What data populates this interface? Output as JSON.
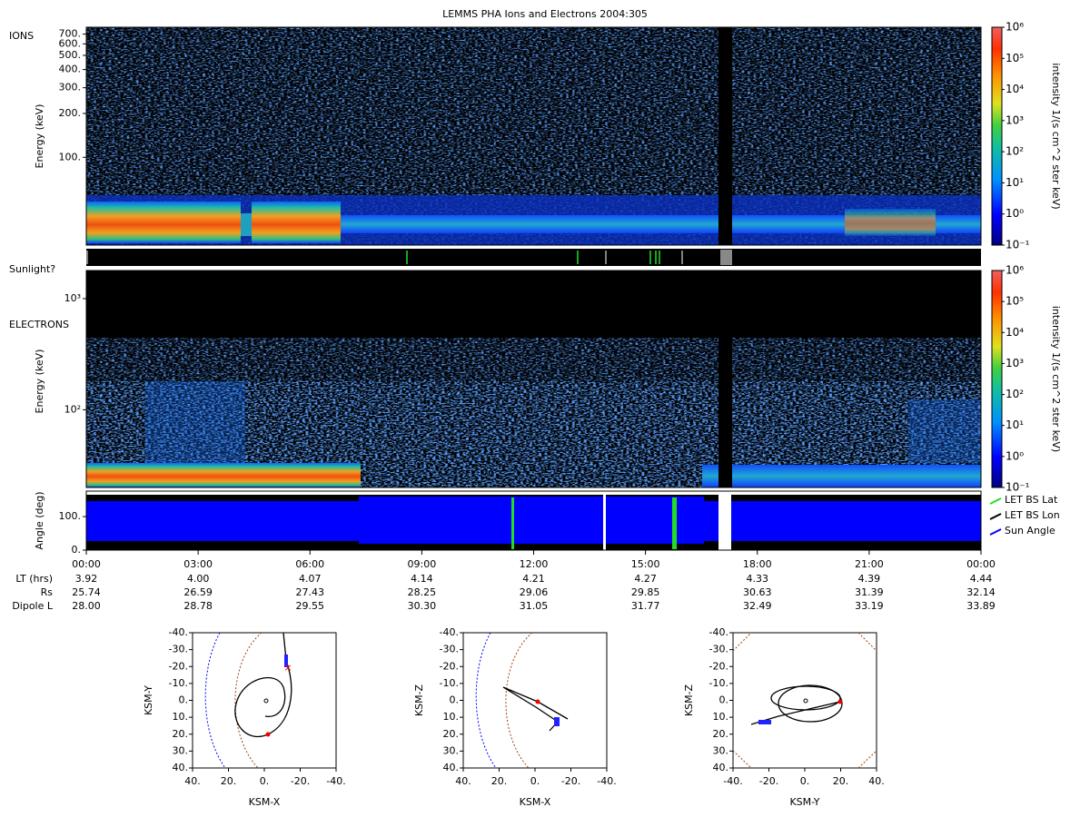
{
  "title": "LEMMS PHA Ions and Electrons  2004:305",
  "sunlight_label": "Sunlight?",
  "chart_data": [
    {
      "type": "heatmap",
      "label": "IONS",
      "ylabel": "Energy (keV)",
      "log_y": true,
      "ylim": [
        25,
        780
      ],
      "yticks": [
        {
          "value": 100,
          "label": "100."
        },
        {
          "value": 200,
          "label": "200."
        },
        {
          "value": 300,
          "label": "300."
        },
        {
          "value": 400,
          "label": "400."
        },
        {
          "value": 500,
          "label": "500."
        },
        {
          "value": 600,
          "label": "600."
        },
        {
          "value": 700,
          "label": "700."
        }
      ],
      "colorbar": {
        "label": "intensity 1/(s cm^2 ster keV)",
        "clim": [
          0.1,
          1000000
        ],
        "ticks": [
          {
            "value": 0.1,
            "label": "10⁻¹"
          },
          {
            "value": 1,
            "label": "10⁰"
          },
          {
            "value": 10,
            "label": "10¹"
          },
          {
            "value": 100,
            "label": "10²"
          },
          {
            "value": 1000,
            "label": "10³"
          },
          {
            "value": 10000,
            "label": "10⁴"
          },
          {
            "value": 100000,
            "label": "10⁵"
          },
          {
            "value": 1000000,
            "label": "10⁶"
          }
        ]
      }
    },
    {
      "type": "heatmap",
      "label": "ELECTRONS",
      "ylabel": "Energy (keV)",
      "log_y": true,
      "ylim": [
        20,
        1790
      ],
      "yticks": [
        {
          "value": 100,
          "label": "10²"
        },
        {
          "value": 1000,
          "label": "10³"
        }
      ],
      "colorbar": {
        "label": "intensity 1/(s cm^2 ster keV)",
        "clim": [
          0.1,
          1000000
        ],
        "ticks": [
          {
            "value": 0.1,
            "label": "10⁻¹"
          },
          {
            "value": 1,
            "label": "10⁰"
          },
          {
            "value": 10,
            "label": "10¹"
          },
          {
            "value": 100,
            "label": "10²"
          },
          {
            "value": 1000,
            "label": "10³"
          },
          {
            "value": 10000,
            "label": "10⁴"
          },
          {
            "value": 100000,
            "label": "10⁵"
          },
          {
            "value": 1000000,
            "label": "10⁶"
          }
        ]
      }
    },
    {
      "type": "area",
      "ylabel": "Angle (deg)",
      "ylim": [
        0,
        176
      ],
      "yticks": [
        {
          "value": 0,
          "label": "0."
        },
        {
          "value": 100,
          "label": "100."
        }
      ],
      "xlim": [
        0,
        24
      ],
      "xticks": [
        {
          "value": 0,
          "label": "00:00"
        },
        {
          "value": 3,
          "label": "03:00"
        },
        {
          "value": 6,
          "label": "06:00"
        },
        {
          "value": 9,
          "label": "09:00"
        },
        {
          "value": 12,
          "label": "12:00"
        },
        {
          "value": 15,
          "label": "15:00"
        },
        {
          "value": 18,
          "label": "18:00"
        },
        {
          "value": 21,
          "label": "21:00"
        },
        {
          "value": 24,
          "label": "00:00"
        }
      ],
      "series": [
        {
          "name": "LET BS Lat",
          "color": "#22dd22"
        },
        {
          "name": "LET BS Lon",
          "color": "#000000"
        },
        {
          "name": "Sun Angle",
          "color": "#0000ff"
        }
      ]
    },
    {
      "type": "line",
      "xlabel": "KSM-X",
      "ylabel": "KSM-Y",
      "xlim": [
        40,
        -40
      ],
      "ylim": [
        40,
        -40
      ],
      "xticks": [
        {
          "value": 40,
          "label": "40."
        },
        {
          "value": 20,
          "label": "20."
        },
        {
          "value": 0,
          "label": "0."
        },
        {
          "value": -20,
          "label": "-20."
        },
        {
          "value": -40,
          "label": "-40."
        }
      ],
      "yticks": [
        {
          "value": -40,
          "label": "-40."
        },
        {
          "value": -30,
          "label": "-30."
        },
        {
          "value": -20,
          "label": "-20."
        },
        {
          "value": -10,
          "label": "-10."
        },
        {
          "value": 0,
          "label": "0."
        },
        {
          "value": 10,
          "label": "10."
        },
        {
          "value": 20,
          "label": "20."
        },
        {
          "value": 30,
          "label": "30."
        },
        {
          "value": 40,
          "label": "40."
        }
      ]
    },
    {
      "type": "line",
      "xlabel": "KSM-X",
      "ylabel": "KSM-Z",
      "xlim": [
        40,
        -40
      ],
      "ylim": [
        40,
        -40
      ],
      "xticks": [
        {
          "value": 40,
          "label": "40."
        },
        {
          "value": 20,
          "label": "20."
        },
        {
          "value": 0,
          "label": "0."
        },
        {
          "value": -20,
          "label": "-20."
        },
        {
          "value": -40,
          "label": "-40."
        }
      ],
      "yticks": [
        {
          "value": -40,
          "label": "-40."
        },
        {
          "value": -30,
          "label": "-30."
        },
        {
          "value": -20,
          "label": "-20."
        },
        {
          "value": -10,
          "label": "-10."
        },
        {
          "value": 0,
          "label": "0."
        },
        {
          "value": 10,
          "label": "10."
        },
        {
          "value": 20,
          "label": "20."
        },
        {
          "value": 30,
          "label": "30."
        },
        {
          "value": 40,
          "label": "40."
        }
      ]
    },
    {
      "type": "line",
      "xlabel": "KSM-Y",
      "ylabel": "KSM-Z",
      "xlim": [
        -40,
        40
      ],
      "ylim": [
        40,
        -40
      ],
      "xticks": [
        {
          "value": -40,
          "label": "-40."
        },
        {
          "value": -20,
          "label": "-20."
        },
        {
          "value": 0,
          "label": "0."
        },
        {
          "value": 20,
          "label": "20."
        },
        {
          "value": 40,
          "label": "40."
        }
      ],
      "yticks": [
        {
          "value": -40,
          "label": "-40."
        },
        {
          "value": -30,
          "label": "-30."
        },
        {
          "value": -20,
          "label": "-20."
        },
        {
          "value": -10,
          "label": "-10."
        },
        {
          "value": 0,
          "label": "0."
        },
        {
          "value": 10,
          "label": "10."
        },
        {
          "value": 20,
          "label": "20."
        },
        {
          "value": 30,
          "label": "30."
        },
        {
          "value": 40,
          "label": "40."
        }
      ]
    }
  ],
  "ephemeris": [
    {
      "label": "LT (hrs)",
      "values": [
        "3.92",
        "4.00",
        "4.07",
        "4.14",
        "4.21",
        "4.27",
        "4.33",
        "4.39",
        "4.44"
      ]
    },
    {
      "label": "Rs",
      "values": [
        "25.74",
        "26.59",
        "27.43",
        "28.25",
        "29.06",
        "29.85",
        "30.63",
        "31.39",
        "32.14"
      ]
    },
    {
      "label": "Dipole L",
      "values": [
        "28.00",
        "28.78",
        "29.55",
        "30.30",
        "31.05",
        "31.77",
        "32.49",
        "33.19",
        "33.89"
      ]
    }
  ]
}
